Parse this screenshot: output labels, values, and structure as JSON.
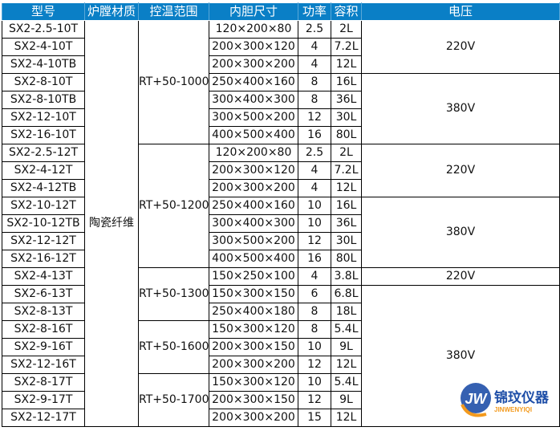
{
  "headers": [
    "型号",
    "炉膛材质",
    "控温范围",
    "内胆尺寸",
    "功率",
    "容积",
    "电压"
  ],
  "material": "陶瓷纤维",
  "rows": [
    {
      "model": "SX2-2.5-10T",
      "size": "120×200×80",
      "power": "2.5",
      "volume": "2L"
    },
    {
      "model": "SX2-4-10T",
      "size": "200×300×120",
      "power": "4",
      "volume": "7.2L"
    },
    {
      "model": "SX2-4-10TB",
      "size": "200×300×200",
      "power": "4",
      "volume": "12L"
    },
    {
      "model": "SX2-8-10T",
      "size": "250×400×160",
      "power": "8",
      "volume": "16L"
    },
    {
      "model": "SX2-8-10TB",
      "size": "300×400×300",
      "power": "8",
      "volume": "36L"
    },
    {
      "model": "SX2-12-10T",
      "size": "300×500×200",
      "power": "12",
      "volume": "30L"
    },
    {
      "model": "SX2-16-10T",
      "size": "400×500×400",
      "power": "16",
      "volume": "80L"
    },
    {
      "model": "SX2-2.5-12T",
      "size": "120×200×80",
      "power": "2.5",
      "volume": "2L"
    },
    {
      "model": "SX2-4-12T",
      "size": "200×300×120",
      "power": "4",
      "volume": "7.2L"
    },
    {
      "model": "SX2-4-12TB",
      "size": "200×300×200",
      "power": "4",
      "volume": "12L"
    },
    {
      "model": "SX2-10-12T",
      "size": "250×400×160",
      "power": "10",
      "volume": "16L"
    },
    {
      "model": "SX2-10-12TB",
      "size": "300×400×300",
      "power": "10",
      "volume": "36L"
    },
    {
      "model": "SX2-12-12T",
      "size": "300×500×200",
      "power": "12",
      "volume": "30L"
    },
    {
      "model": "SX2-16-12T",
      "size": "400×500×400",
      "power": "16",
      "volume": "80L"
    },
    {
      "model": "SX2-4-13T",
      "size": "150×250×100",
      "power": "4",
      "volume": "3.8L"
    },
    {
      "model": "SX2-6-13T",
      "size": "150×300×150",
      "power": "6",
      "volume": "6.8L"
    },
    {
      "model": "SX2-8-13T",
      "size": "250×400×180",
      "power": "8",
      "volume": "18L"
    },
    {
      "model": "SX2-8-16T",
      "size": "150×300×120",
      "power": "8",
      "volume": "5.4L"
    },
    {
      "model": "SX2-9-16T",
      "size": "200×300×150",
      "power": "10",
      "volume": "9L"
    },
    {
      "model": "SX2-12-16T",
      "size": "200×300×200",
      "power": "12",
      "volume": "12L"
    },
    {
      "model": "SX2-8-17T",
      "size": "150×300×120",
      "power": "10",
      "volume": "5.4L"
    },
    {
      "model": "SX2-9-17T",
      "size": "200×300×150",
      "power": "12",
      "volume": "9L"
    },
    {
      "model": "SX2-12-17T",
      "size": "200×300×200",
      "power": "15",
      "volume": "12L"
    }
  ],
  "temp_groups": [
    {
      "label": "RT+50-1000",
      "start": 0,
      "span": 7
    },
    {
      "label": "RT+50-1200",
      "start": 7,
      "span": 7
    },
    {
      "label": "RT+50-1300",
      "start": 14,
      "span": 3
    },
    {
      "label": "RT+50-1600",
      "start": 17,
      "span": 3
    },
    {
      "label": "RT+50-1700",
      "start": 20,
      "span": 3
    }
  ],
  "voltage_groups": [
    {
      "label": "220V",
      "start": 0,
      "span": 3
    },
    {
      "label": "380V",
      "start": 3,
      "span": 4
    },
    {
      "label": "220V",
      "start": 7,
      "span": 3
    },
    {
      "label": "380V",
      "start": 10,
      "span": 4
    },
    {
      "label": "220V",
      "start": 14,
      "span": 1
    },
    {
      "label": "380V",
      "start": 15,
      "span": 8
    }
  ],
  "watermark": {
    "logo_text": "JW",
    "name": "锦玟仪器",
    "pinyin": "JINWENYIQI"
  },
  "colors": {
    "header_bg": "#0a7fc6",
    "logo_blue": "#1f4fa8",
    "logo_orange": "#f39a1e"
  }
}
